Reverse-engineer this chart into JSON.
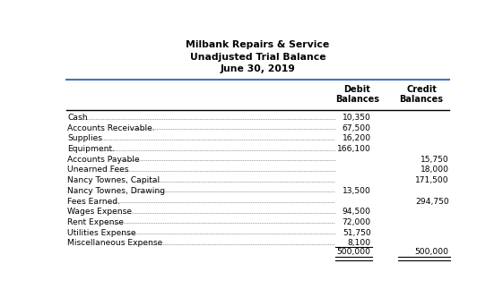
{
  "title_line1": "Milbank Repairs & Service",
  "title_line2": "Unadjusted Trial Balance",
  "title_line3": "June 30, 2019",
  "rows": [
    {
      "account": "Cash",
      "debit": "10,350",
      "credit": ""
    },
    {
      "account": "Accounts Receivable.",
      "debit": "67,500",
      "credit": ""
    },
    {
      "account": "Supplies",
      "debit": "16,200",
      "credit": ""
    },
    {
      "account": "Equipment.",
      "debit": "166,100",
      "credit": ""
    },
    {
      "account": "Accounts Payable",
      "debit": "",
      "credit": "15,750"
    },
    {
      "account": "Unearned Fees",
      "debit": "",
      "credit": "18,000"
    },
    {
      "account": "Nancy Townes, Capital",
      "debit": "",
      "credit": "171,500"
    },
    {
      "account": "Nancy Townes, Drawing",
      "debit": "13,500",
      "credit": ""
    },
    {
      "account": "Fees Earned.",
      "debit": "",
      "credit": "294,750"
    },
    {
      "account": "Wages Expense",
      "debit": "94,500",
      "credit": ""
    },
    {
      "account": "Rent Expense",
      "debit": "72,000",
      "credit": ""
    },
    {
      "account": "Utilities Expense",
      "debit": "51,750",
      "credit": ""
    },
    {
      "account": "Miscellaneous Expense",
      "debit": "8,100",
      "credit": ""
    }
  ],
  "total_debit": "500,000",
  "total_credit": "500,000",
  "bg_color": "#ffffff",
  "text_color": "#000000",
  "title_sep_color": "#4472C4",
  "line_color": "#000000"
}
